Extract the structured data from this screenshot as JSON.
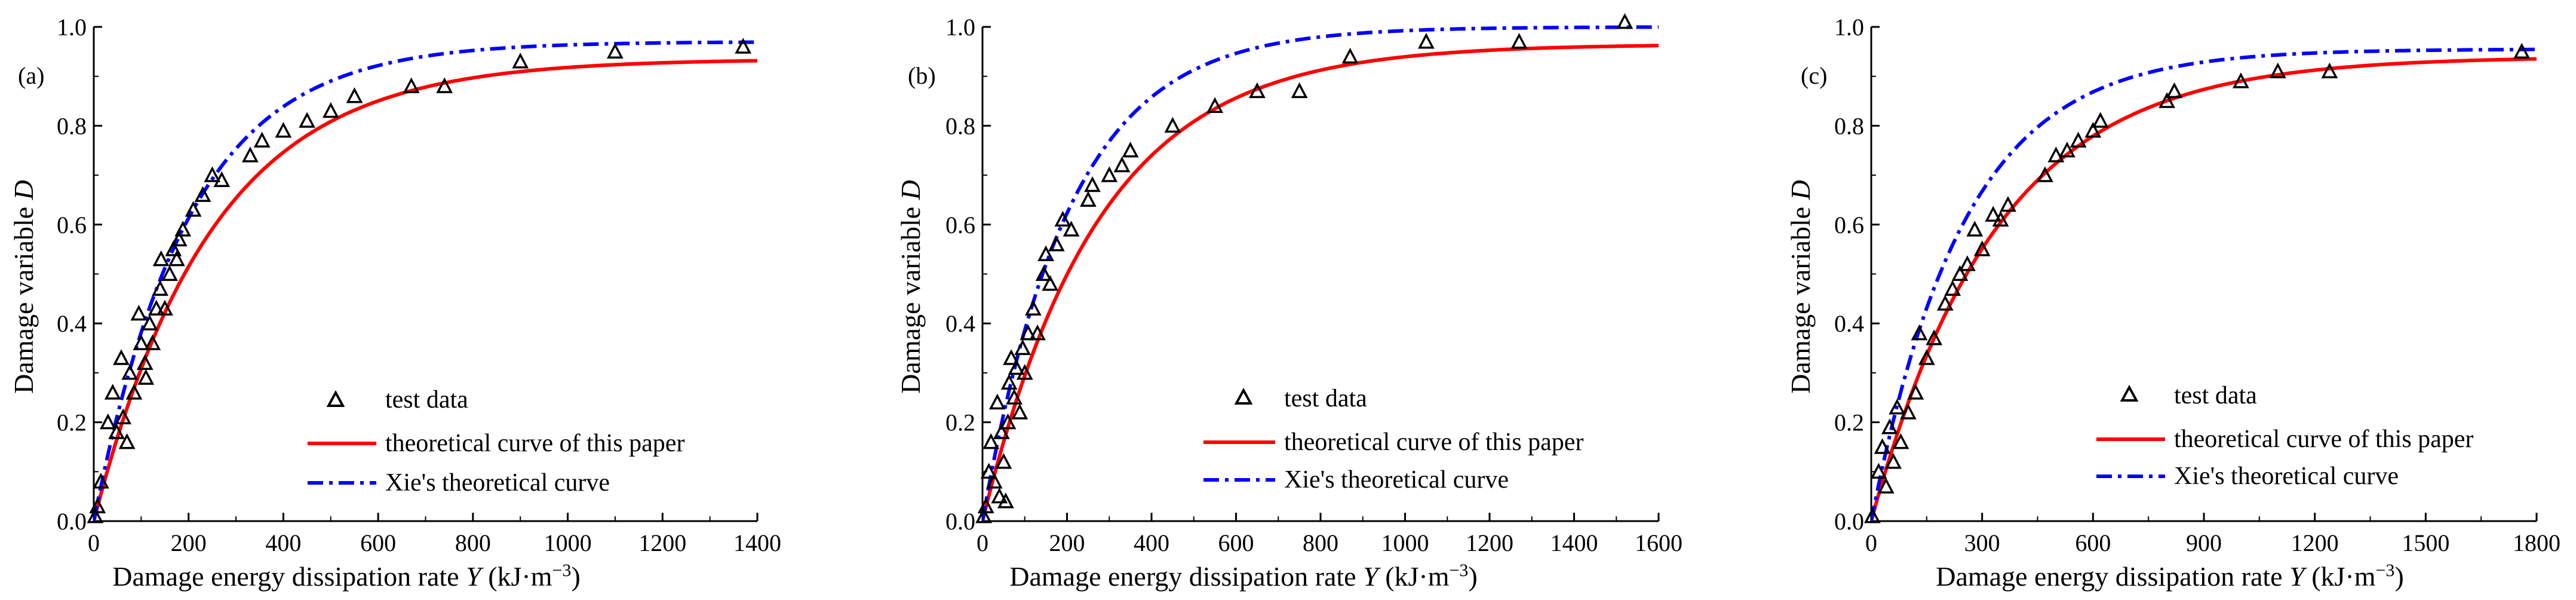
{
  "figure": {
    "xlabel_text": "Damage energy dissipation rate ",
    "xlabel_var": "Y",
    "xlabel_unit": " (kJ·m",
    "xlabel_exp": "−3",
    "xlabel_close": ")",
    "ylabel_text": "Damage variable ",
    "ylabel_var": "D",
    "legend": {
      "test": "test data",
      "fit": "theoretical curve of this paper",
      "xie": "Xie's theoretical curve"
    },
    "colors": {
      "fit": "#ff0000",
      "xie": "#0000ff",
      "markers": "#000000",
      "axes": "#000000"
    }
  },
  "chart_data": [
    {
      "type": "scatter",
      "panel_label": "(a)",
      "xlim": [
        0,
        1400
      ],
      "ylim": [
        0,
        1.0
      ],
      "xticks": [
        0,
        200,
        400,
        600,
        800,
        1000,
        1200,
        1400
      ],
      "yticks": [
        0.0,
        0.2,
        0.4,
        0.6,
        0.8,
        1.0
      ],
      "ytick_labels": [
        "0.0",
        "0.2",
        "0.4",
        "0.6",
        "0.8",
        "1.0"
      ],
      "legend_position": "lower-center",
      "series": [
        {
          "name": "test data",
          "marker": "open-triangle",
          "points": [
            [
              3,
              0.01
            ],
            [
              8,
              0.03
            ],
            [
              15,
              0.08
            ],
            [
              30,
              0.2
            ],
            [
              40,
              0.26
            ],
            [
              48,
              0.18
            ],
            [
              58,
              0.33
            ],
            [
              62,
              0.21
            ],
            [
              70,
              0.16
            ],
            [
              76,
              0.3
            ],
            [
              85,
              0.26
            ],
            [
              95,
              0.42
            ],
            [
              100,
              0.36
            ],
            [
              108,
              0.32
            ],
            [
              110,
              0.29
            ],
            [
              118,
              0.4
            ],
            [
              124,
              0.36
            ],
            [
              132,
              0.43
            ],
            [
              140,
              0.47
            ],
            [
              142,
              0.53
            ],
            [
              150,
              0.43
            ],
            [
              160,
              0.5
            ],
            [
              168,
              0.55
            ],
            [
              175,
              0.53
            ],
            [
              180,
              0.57
            ],
            [
              188,
              0.59
            ],
            [
              210,
              0.63
            ],
            [
              230,
              0.66
            ],
            [
              250,
              0.7
            ],
            [
              270,
              0.69
            ],
            [
              330,
              0.74
            ],
            [
              355,
              0.77
            ],
            [
              400,
              0.79
            ],
            [
              450,
              0.81
            ],
            [
              500,
              0.83
            ],
            [
              550,
              0.86
            ],
            [
              670,
              0.88
            ],
            [
              740,
              0.88
            ],
            [
              900,
              0.93
            ],
            [
              1100,
              0.95
            ],
            [
              1370,
              0.96
            ]
          ]
        },
        {
          "name": "theoretical curve of this paper",
          "style": "solid",
          "asymptote": 0.935,
          "scale": 250
        },
        {
          "name": "Xie's theoretical curve",
          "style": "dash-dot",
          "asymptote": 0.97,
          "scale": 200
        }
      ]
    },
    {
      "type": "scatter",
      "panel_label": "(b)",
      "xlim": [
        0,
        1600
      ],
      "ylim": [
        0,
        1.0
      ],
      "xticks": [
        0,
        200,
        400,
        600,
        800,
        1000,
        1200,
        1400,
        1600
      ],
      "yticks": [
        0.0,
        0.2,
        0.4,
        0.6,
        0.8,
        1.0
      ],
      "ytick_labels": [
        "0.0",
        "0.2",
        "0.4",
        "0.6",
        "0.8",
        "1.0"
      ],
      "legend_position": "lower-center",
      "series": [
        {
          "name": "test data",
          "marker": "open-triangle",
          "points": [
            [
              3,
              0.01
            ],
            [
              8,
              0.03
            ],
            [
              15,
              0.1
            ],
            [
              20,
              0.16
            ],
            [
              28,
              0.08
            ],
            [
              35,
              0.24
            ],
            [
              40,
              0.05
            ],
            [
              45,
              0.18
            ],
            [
              50,
              0.12
            ],
            [
              55,
              0.04
            ],
            [
              60,
              0.2
            ],
            [
              63,
              0.28
            ],
            [
              68,
              0.33
            ],
            [
              75,
              0.25
            ],
            [
              80,
              0.31
            ],
            [
              88,
              0.22
            ],
            [
              95,
              0.35
            ],
            [
              100,
              0.3
            ],
            [
              108,
              0.38
            ],
            [
              120,
              0.43
            ],
            [
              130,
              0.38
            ],
            [
              145,
              0.5
            ],
            [
              150,
              0.54
            ],
            [
              160,
              0.48
            ],
            [
              175,
              0.56
            ],
            [
              190,
              0.61
            ],
            [
              210,
              0.59
            ],
            [
              250,
              0.65
            ],
            [
              260,
              0.68
            ],
            [
              300,
              0.7
            ],
            [
              330,
              0.72
            ],
            [
              350,
              0.75
            ],
            [
              450,
              0.8
            ],
            [
              550,
              0.84
            ],
            [
              650,
              0.87
            ],
            [
              750,
              0.87
            ],
            [
              870,
              0.94
            ],
            [
              1050,
              0.97
            ],
            [
              1270,
              0.97
            ],
            [
              1520,
              1.01
            ]
          ]
        },
        {
          "name": "theoretical curve of this paper",
          "style": "solid",
          "asymptote": 0.965,
          "scale": 275
        },
        {
          "name": "Xie's theoretical curve",
          "style": "dash-dot",
          "asymptote": 1.0,
          "scale": 205
        }
      ]
    },
    {
      "type": "scatter",
      "panel_label": "(c)",
      "xlim": [
        0,
        1800
      ],
      "ylim": [
        0,
        1.0
      ],
      "xticks": [
        0,
        300,
        600,
        900,
        1200,
        1500,
        1800
      ],
      "yticks": [
        0.0,
        0.2,
        0.4,
        0.6,
        0.8,
        1.0
      ],
      "ytick_labels": [
        "0.0",
        "0.2",
        "0.4",
        "0.6",
        "0.8",
        "1.0"
      ],
      "legend_position": "lower-center",
      "series": [
        {
          "name": "test data",
          "marker": "open-triangle",
          "points": [
            [
              3,
              0.01
            ],
            [
              20,
              0.1
            ],
            [
              30,
              0.15
            ],
            [
              40,
              0.07
            ],
            [
              50,
              0.19
            ],
            [
              60,
              0.12
            ],
            [
              70,
              0.23
            ],
            [
              80,
              0.16
            ],
            [
              100,
              0.22
            ],
            [
              120,
              0.26
            ],
            [
              130,
              0.38
            ],
            [
              150,
              0.33
            ],
            [
              170,
              0.37
            ],
            [
              200,
              0.44
            ],
            [
              220,
              0.47
            ],
            [
              240,
              0.5
            ],
            [
              260,
              0.52
            ],
            [
              280,
              0.59
            ],
            [
              300,
              0.55
            ],
            [
              330,
              0.62
            ],
            [
              350,
              0.61
            ],
            [
              370,
              0.64
            ],
            [
              470,
              0.7
            ],
            [
              500,
              0.74
            ],
            [
              530,
              0.75
            ],
            [
              560,
              0.77
            ],
            [
              600,
              0.79
            ],
            [
              620,
              0.81
            ],
            [
              800,
              0.85
            ],
            [
              820,
              0.87
            ],
            [
              1000,
              0.89
            ],
            [
              1100,
              0.91
            ],
            [
              1240,
              0.91
            ],
            [
              1760,
              0.95
            ]
          ]
        },
        {
          "name": "theoretical curve of this paper",
          "style": "solid",
          "asymptote": 0.94,
          "scale": 340
        },
        {
          "name": "Xie's theoretical curve",
          "style": "dash-dot",
          "asymptote": 0.955,
          "scale": 250
        }
      ]
    }
  ]
}
